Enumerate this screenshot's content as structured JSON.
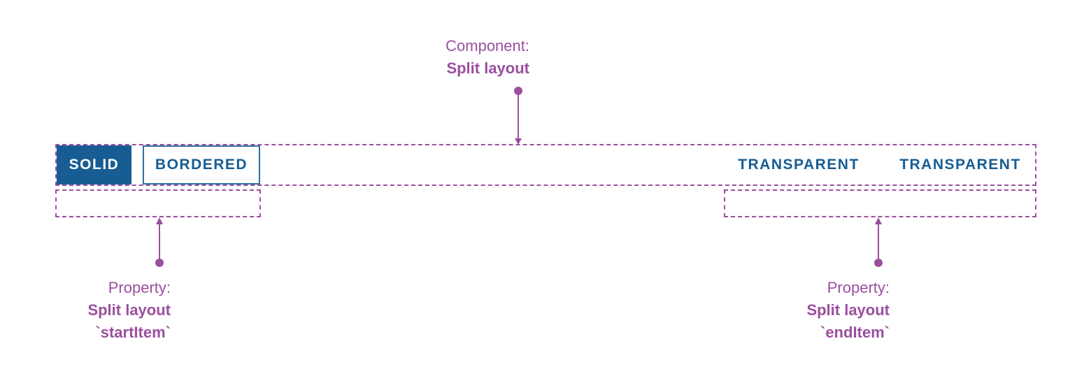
{
  "component_label": {
    "line1": "Component:",
    "line2": "Split layout"
  },
  "buttons": {
    "solid": "SOLID",
    "bordered": "BORDERED",
    "transparent1": "TRANSPARENT",
    "transparent2": "TRANSPARENT"
  },
  "start_label": {
    "line1": "Property:",
    "line2": "Split layout",
    "line3": "`startItem`"
  },
  "end_label": {
    "line1": "Property:",
    "line2": "Split layout",
    "line3": "`endItem`"
  },
  "colors": {
    "annotation": "#9b4f9f",
    "primary": "#175d93"
  }
}
